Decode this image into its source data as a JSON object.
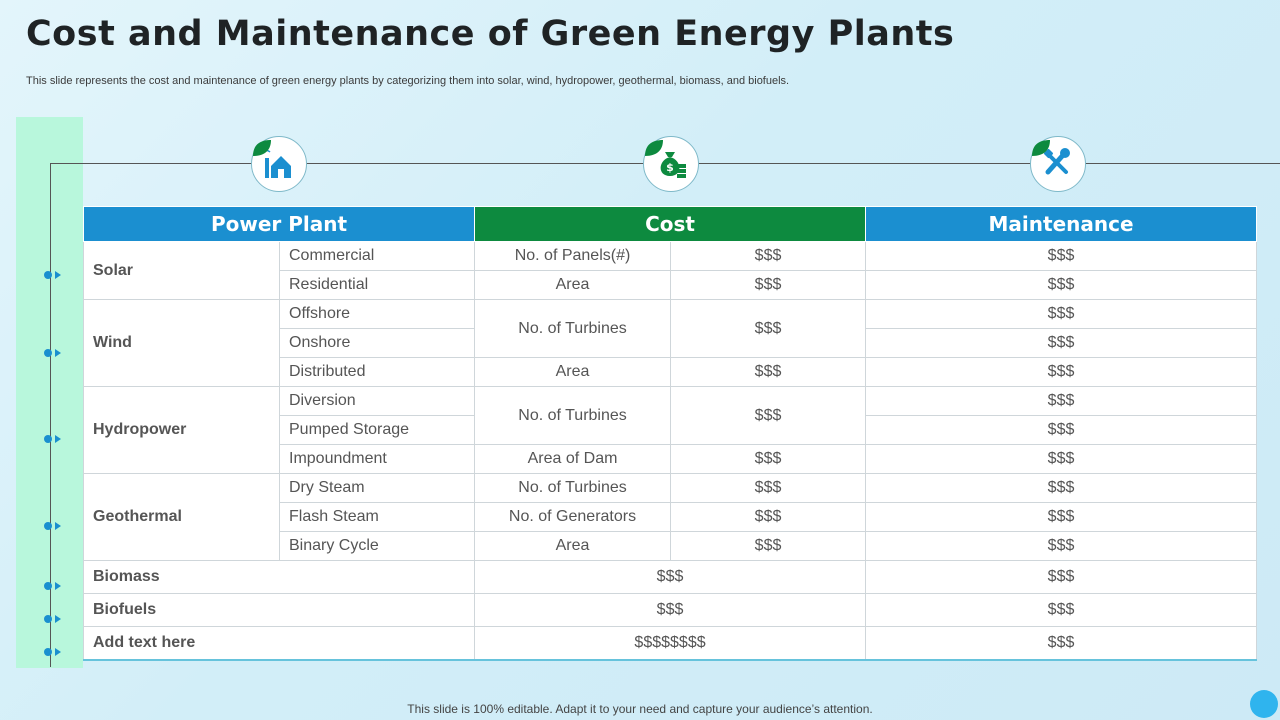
{
  "title": "Cost and Maintenance of Green Energy Plants",
  "subtitle": "This slide represents the cost and maintenance of green energy plants by categorizing them into solar, wind, hydropower, geothermal, biomass, and biofuels.",
  "footer": "This slide is 100% editable. Adapt it to your need and capture your audience’s attention.",
  "colors": {
    "blue": "#1b8fd0",
    "green": "#0d8a3f",
    "band": "#b8f7dc"
  },
  "icons": [
    "factory-home-icon",
    "money-bag-icon",
    "tools-icon"
  ],
  "headers": {
    "plant": "Power Plant",
    "cost": "Cost",
    "maintenance": "Maintenance"
  },
  "solar": {
    "name": "Solar",
    "types": [
      "Commercial",
      "Residential"
    ],
    "cost_items": [
      {
        "label": "No. of Panels(#)",
        "value": "$$$"
      },
      {
        "label": "Area",
        "value": "$$$"
      }
    ],
    "maintenance": [
      "$$$",
      "$$$"
    ]
  },
  "wind": {
    "name": "Wind",
    "types": [
      "Offshore",
      "Onshore",
      "Distributed"
    ],
    "cost_items": [
      {
        "label": "No. of Turbines",
        "value": "$$$"
      },
      {
        "label": "Area",
        "value": "$$$"
      }
    ],
    "maintenance": [
      "$$$",
      "$$$",
      "$$$"
    ]
  },
  "hydropower": {
    "name": "Hydropower",
    "types": [
      "Diversion",
      "Pumped Storage",
      "Impoundment"
    ],
    "cost_items": [
      {
        "label": "No. of Turbines",
        "value": "$$$"
      },
      {
        "label": "Area of Dam",
        "value": "$$$"
      }
    ],
    "maintenance": [
      "$$$",
      "$$$",
      "$$$"
    ]
  },
  "geothermal": {
    "name": "Geothermal",
    "types": [
      "Dry Steam",
      "Flash Steam",
      "Binary Cycle"
    ],
    "cost_items": [
      {
        "label": "No. of Turbines",
        "value": "$$$"
      },
      {
        "label": "No. of Generators",
        "value": "$$$"
      },
      {
        "label": "Area",
        "value": "$$$"
      }
    ],
    "maintenance": [
      "$$$",
      "$$$",
      "$$$"
    ]
  },
  "biomass": {
    "name": "Biomass",
    "cost": "$$$",
    "maintenance": "$$$"
  },
  "biofuels": {
    "name": "Biofuels",
    "cost": "$$$",
    "maintenance": "$$$"
  },
  "extra": {
    "name": "Add text here",
    "cost": "$$$$$$$$",
    "maintenance": "$$$"
  }
}
